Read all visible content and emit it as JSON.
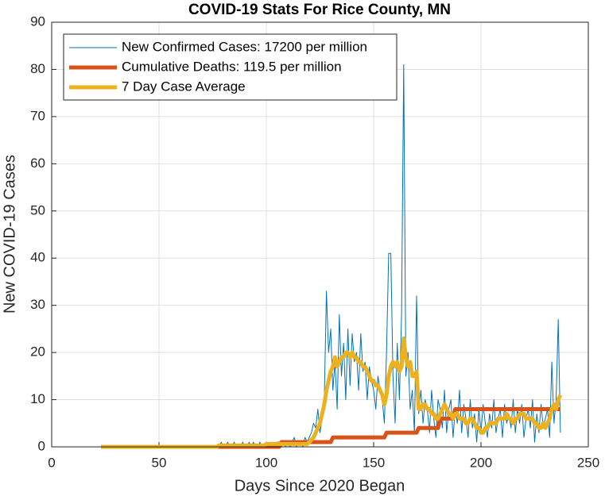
{
  "chart_data": {
    "type": "line",
    "title": "COVID-19 Stats For Rice County, MN",
    "xlabel": "Days Since 2020 Began",
    "ylabel": "New COVID-19 Cases",
    "xlim": [
      0,
      250
    ],
    "xticks": [
      0,
      50,
      100,
      150,
      200,
      250
    ],
    "ylim": [
      0,
      90
    ],
    "yticks": [
      0,
      10,
      20,
      30,
      40,
      50,
      60,
      70,
      80,
      90
    ],
    "grid": true,
    "legend": "northwest",
    "x": [
      23,
      24,
      25,
      26,
      27,
      28,
      29,
      30,
      31,
      32,
      33,
      34,
      35,
      36,
      37,
      38,
      39,
      40,
      41,
      42,
      43,
      44,
      45,
      46,
      47,
      48,
      49,
      50,
      51,
      52,
      53,
      54,
      55,
      56,
      57,
      58,
      59,
      60,
      61,
      62,
      63,
      64,
      65,
      66,
      67,
      68,
      69,
      70,
      71,
      72,
      73,
      74,
      75,
      76,
      77,
      78,
      79,
      80,
      81,
      82,
      83,
      84,
      85,
      86,
      87,
      88,
      89,
      90,
      91,
      92,
      93,
      94,
      95,
      96,
      97,
      98,
      99,
      100,
      101,
      102,
      103,
      104,
      105,
      106,
      107,
      108,
      109,
      110,
      111,
      112,
      113,
      114,
      115,
      116,
      117,
      118,
      119,
      120,
      121,
      122,
      123,
      124,
      125,
      126,
      127,
      128,
      129,
      130,
      131,
      132,
      133,
      134,
      135,
      136,
      137,
      138,
      139,
      140,
      141,
      142,
      143,
      144,
      145,
      146,
      147,
      148,
      149,
      150,
      151,
      152,
      153,
      154,
      155,
      156,
      157,
      158,
      159,
      160,
      161,
      162,
      163,
      164,
      165,
      166,
      167,
      168,
      169,
      170,
      171,
      172,
      173,
      174,
      175,
      176,
      177,
      178,
      179,
      180,
      181,
      182,
      183,
      184,
      185,
      186,
      187,
      188,
      189,
      190,
      191,
      192,
      193,
      194,
      195,
      196,
      197,
      198,
      199,
      200,
      201,
      202,
      203,
      204,
      205,
      206,
      207,
      208,
      209,
      210,
      211,
      212,
      213,
      214,
      215,
      216,
      217,
      218,
      219,
      220,
      221,
      222,
      223,
      224,
      225,
      226,
      227,
      228,
      229,
      230,
      231,
      232,
      233,
      234,
      235,
      236,
      237
    ],
    "series": [
      {
        "name": "New Confirmed Cases: 17200 per million",
        "color": "#0072BD",
        "width": 1,
        "values": [
          0,
          0,
          0,
          0,
          0,
          0,
          0,
          0,
          0,
          0,
          0,
          0,
          0,
          0,
          0,
          0,
          0,
          0,
          0,
          0,
          0,
          0,
          0,
          0,
          0,
          0,
          0,
          0,
          0,
          0,
          0,
          0,
          0,
          0,
          0,
          0,
          0,
          0,
          0,
          0,
          0,
          0,
          0,
          0,
          0,
          0,
          0,
          0,
          0,
          0,
          0,
          0,
          0,
          0,
          0,
          0,
          1,
          0,
          0,
          1,
          0,
          0,
          1,
          0,
          0,
          0,
          1,
          0,
          0,
          1,
          0,
          1,
          0,
          0,
          1,
          0,
          0,
          1,
          0,
          0,
          1,
          0,
          1,
          1,
          0,
          1,
          0,
          1,
          0,
          1,
          2,
          0,
          1,
          1,
          0,
          2,
          1,
          2,
          3,
          5,
          4,
          8,
          3,
          6,
          10,
          33,
          20,
          25,
          12,
          18,
          8,
          28,
          15,
          22,
          10,
          25,
          13,
          24,
          18,
          20,
          12,
          24,
          16,
          18,
          10,
          17,
          14,
          12,
          8,
          15,
          12,
          10,
          5,
          20,
          41,
          41,
          15,
          5,
          22,
          10,
          28,
          81,
          15,
          20,
          8,
          12,
          3,
          32,
          7,
          12,
          5,
          10,
          8,
          3,
          12,
          6,
          2,
          10,
          8,
          4,
          12,
          3,
          8,
          10,
          2,
          8,
          5,
          12,
          3,
          9,
          6,
          2,
          10,
          4,
          7,
          1,
          8,
          3,
          9,
          5,
          2,
          7,
          4,
          10,
          3,
          6,
          8,
          2,
          9,
          5,
          7,
          4,
          10,
          3,
          8,
          5,
          9,
          2,
          6,
          8,
          4,
          10,
          1,
          7,
          3,
          9,
          4,
          6,
          8,
          2,
          18,
          5,
          10,
          27,
          3
        ]
      },
      {
        "name": "Cumulative Deaths: 119.5 per million",
        "color": "#D95319",
        "width": 5,
        "values": [
          0,
          0,
          0,
          0,
          0,
          0,
          0,
          0,
          0,
          0,
          0,
          0,
          0,
          0,
          0,
          0,
          0,
          0,
          0,
          0,
          0,
          0,
          0,
          0,
          0,
          0,
          0,
          0,
          0,
          0,
          0,
          0,
          0,
          0,
          0,
          0,
          0,
          0,
          0,
          0,
          0,
          0,
          0,
          0,
          0,
          0,
          0,
          0,
          0,
          0,
          0,
          0,
          0,
          0,
          0,
          0,
          0,
          0,
          0,
          0,
          0,
          0,
          0,
          0,
          0,
          0,
          0,
          0,
          0,
          0,
          0,
          0,
          0,
          0,
          0,
          0,
          0,
          0,
          0,
          0,
          0,
          0,
          0,
          0,
          1,
          1,
          1,
          1,
          1,
          1,
          1,
          1,
          1,
          1,
          1,
          1,
          1,
          1,
          1,
          1,
          1,
          1,
          1,
          1,
          1,
          1,
          1,
          1,
          2,
          2,
          2,
          2,
          2,
          2,
          2,
          2,
          2,
          2,
          2,
          2,
          2,
          2,
          2,
          2,
          2,
          2,
          2,
          2,
          2,
          2,
          2,
          2,
          2,
          3,
          3,
          3,
          3,
          3,
          3,
          3,
          3,
          3,
          3,
          3,
          3,
          3,
          3,
          3,
          4,
          4,
          4,
          4,
          4,
          4,
          4,
          4,
          4,
          4,
          6,
          6,
          6,
          6,
          6,
          6,
          6,
          8,
          8,
          8,
          8,
          8,
          8,
          8,
          8,
          8,
          8,
          8,
          8,
          8,
          8,
          8,
          8,
          8,
          8,
          8,
          8,
          8,
          8,
          8,
          8,
          8,
          8,
          8,
          8,
          8,
          8,
          8,
          8,
          8,
          8,
          8,
          8,
          8,
          8,
          8,
          8,
          8,
          8,
          8,
          8,
          8,
          8,
          8,
          8,
          8,
          8
        ]
      },
      {
        "name": "7 Day Case Average",
        "color": "#EDB120",
        "width": 5,
        "values": [
          0,
          0,
          0,
          0,
          0,
          0,
          0,
          0,
          0,
          0,
          0,
          0,
          0,
          0,
          0,
          0,
          0,
          0,
          0,
          0,
          0,
          0,
          0,
          0,
          0,
          0,
          0,
          0,
          0,
          0,
          0,
          0,
          0,
          0,
          0,
          0,
          0,
          0,
          0,
          0,
          0,
          0,
          0,
          0,
          0,
          0,
          0,
          0,
          0,
          0,
          0,
          0,
          0,
          0,
          0,
          0.3,
          0.3,
          0.3,
          0.3,
          0.3,
          0.3,
          0.3,
          0.3,
          0.3,
          0.3,
          0.3,
          0.3,
          0.3,
          0.3,
          0.3,
          0.3,
          0.3,
          0.3,
          0.3,
          0.3,
          0.3,
          0.3,
          0.6,
          0.6,
          0.6,
          0.6,
          0.6,
          0.6,
          0.6,
          0.6,
          0.6,
          0.6,
          0.6,
          0.6,
          0.6,
          0.6,
          0.6,
          0.6,
          0.6,
          0.6,
          0.6,
          0.6,
          1,
          1.5,
          2,
          3,
          4,
          5,
          7,
          9,
          12,
          14,
          16,
          17,
          19,
          17,
          18,
          19,
          19,
          20,
          20,
          19,
          20,
          19,
          19,
          18,
          18,
          17,
          17,
          16,
          15,
          14,
          14,
          13,
          13,
          12,
          11,
          9,
          11,
          15,
          17,
          18,
          17,
          18,
          16,
          17,
          23,
          19,
          17,
          18,
          15,
          15,
          16,
          8,
          8,
          9,
          9,
          8,
          8,
          7,
          7,
          6,
          6,
          7,
          8,
          9,
          8,
          7,
          7,
          6,
          7,
          7,
          6,
          6,
          6,
          5,
          5,
          6,
          6,
          5,
          4,
          4,
          3,
          3,
          4,
          4,
          5,
          5,
          5,
          5,
          6,
          6,
          6,
          6,
          7,
          6,
          6,
          5,
          6,
          6,
          7,
          7,
          7,
          6,
          6,
          6,
          6,
          5,
          5,
          4,
          4,
          5,
          4,
          5,
          6,
          8,
          9,
          8,
          10,
          11
        ]
      }
    ]
  }
}
